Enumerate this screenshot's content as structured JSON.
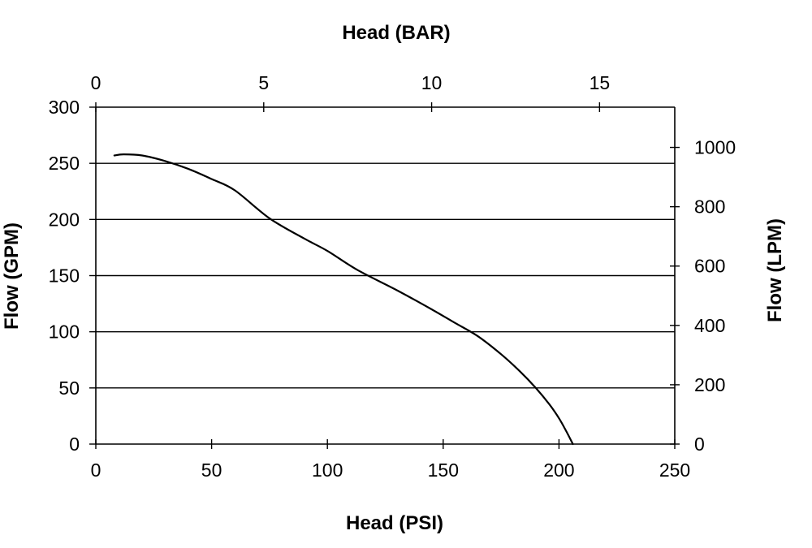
{
  "chart_data": {
    "type": "line",
    "title": "",
    "xlabel_bottom": "Head (PSI)",
    "xlabel_top": "Head (BAR)",
    "ylabel_left": "Flow (GPM)",
    "ylabel_right": "Flow (LPM)",
    "xlim": [
      0,
      250
    ],
    "ylim": [
      0,
      300
    ],
    "x_top_lim": [
      0,
      17.24
    ],
    "y_right_lim": [
      0,
      1135.6
    ],
    "x_ticks": [
      0,
      50,
      100,
      150,
      200,
      250
    ],
    "y_ticks": [
      0,
      50,
      100,
      150,
      200,
      250,
      300
    ],
    "x_top_ticks": [
      0,
      5,
      10,
      15
    ],
    "y_right_ticks": [
      0,
      200,
      400,
      600,
      800,
      1000
    ],
    "grid": "horizontal",
    "series": [
      {
        "x": [
          8,
          12,
          20,
          30,
          40,
          50,
          60,
          75,
          90,
          100,
          113,
          130,
          145,
          155,
          165,
          175,
          183,
          190,
          196,
          200,
          203,
          206
        ],
        "y": [
          257,
          258,
          257,
          252,
          245,
          236,
          226,
          201,
          183,
          172,
          155,
          137,
          120,
          108,
          96,
          80,
          65,
          50,
          35,
          23,
          12,
          0
        ]
      }
    ]
  }
}
